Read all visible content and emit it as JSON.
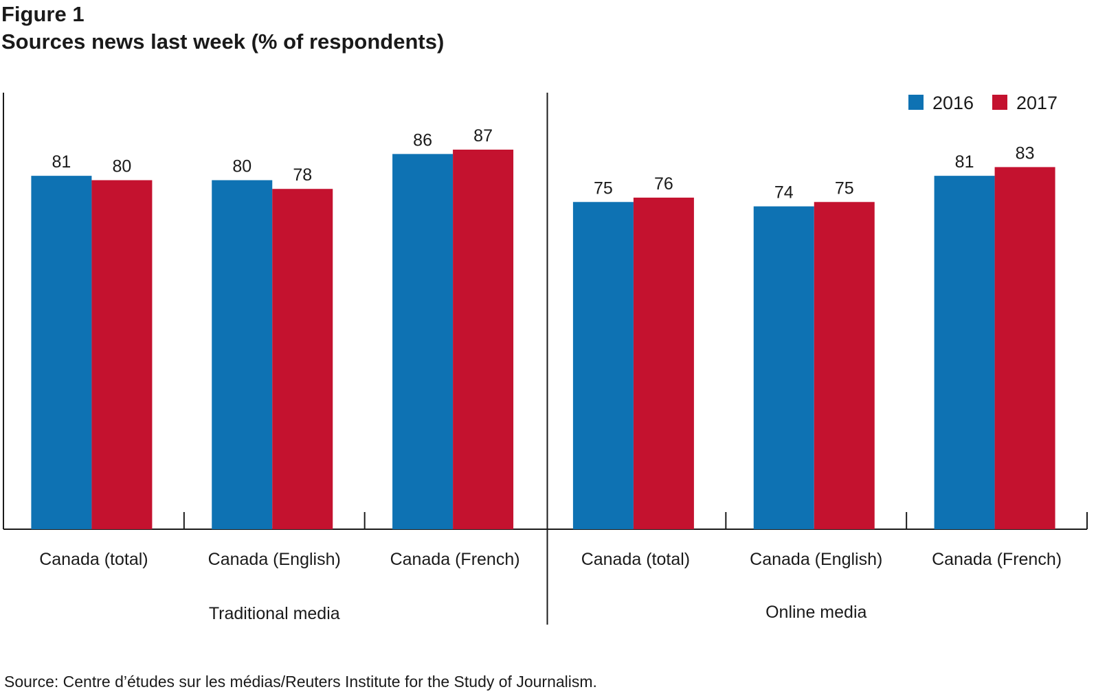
{
  "figure_label": "Figure 1",
  "title": "Sources news last week (% of respondents)",
  "source": "Source: Centre d’études sur les médias/Reuters Institute for the Study of Journalism.",
  "colors": {
    "2016": "#0e72b3",
    "2017": "#c4122f"
  },
  "chart_data": {
    "type": "bar",
    "title": "Sources news last week (% of respondents)",
    "categories": [
      "Canada (total)",
      "Canada (English)",
      "Canada (French)",
      "Canada (total)",
      "Canada (English)",
      "Canada (French)"
    ],
    "groups": [
      {
        "label": "Traditional media",
        "categories": [
          "Canada (total)",
          "Canada (English)",
          "Canada (French)"
        ]
      },
      {
        "label": "Online media",
        "categories": [
          "Canada (total)",
          "Canada (English)",
          "Canada (French)"
        ]
      }
    ],
    "series": [
      {
        "name": "2016",
        "color": "#0e72b3",
        "values": [
          81,
          80,
          86,
          75,
          74,
          81
        ]
      },
      {
        "name": "2017",
        "color": "#c4122f",
        "values": [
          80,
          78,
          87,
          76,
          75,
          83
        ]
      }
    ],
    "ylim": [
      0,
      95
    ],
    "grid": false,
    "legend": "top-right",
    "data_labels": true
  }
}
